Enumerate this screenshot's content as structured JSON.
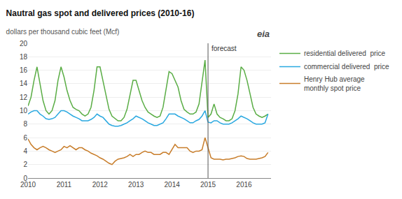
{
  "chart_data": {
    "type": "line",
    "title": "Nautral gas spot and delivered prices (2010-16)",
    "subtitle": "dollars per thousand cubic feet (Mcf)",
    "x": [
      2010.0,
      2010.083,
      2010.167,
      2010.25,
      2010.333,
      2010.417,
      2010.5,
      2010.583,
      2010.667,
      2010.75,
      2010.833,
      2010.917,
      2011.0,
      2011.083,
      2011.167,
      2011.25,
      2011.333,
      2011.417,
      2011.5,
      2011.583,
      2011.667,
      2011.75,
      2011.833,
      2011.917,
      2012.0,
      2012.083,
      2012.167,
      2012.25,
      2012.333,
      2012.417,
      2012.5,
      2012.583,
      2012.667,
      2012.75,
      2012.833,
      2012.917,
      2013.0,
      2013.083,
      2013.167,
      2013.25,
      2013.333,
      2013.417,
      2013.5,
      2013.583,
      2013.667,
      2013.75,
      2013.833,
      2013.917,
      2014.0,
      2014.083,
      2014.167,
      2014.25,
      2014.333,
      2014.417,
      2014.5,
      2014.583,
      2014.667,
      2014.75,
      2014.833,
      2014.917,
      2015.0,
      2015.083,
      2015.167,
      2015.25,
      2015.333,
      2015.417,
      2015.5,
      2015.583,
      2015.667,
      2015.75,
      2015.833,
      2015.917,
      2016.0,
      2016.083,
      2016.167,
      2016.25,
      2016.333,
      2016.417,
      2016.5,
      2016.583,
      2016.667
    ],
    "series": [
      {
        "name": "residential delivered  price",
        "color": "#5aad45",
        "values": [
          10.7,
          12.0,
          14.5,
          16.5,
          14.0,
          11.5,
          10.0,
          9.5,
          10.0,
          11.5,
          14.5,
          16.5,
          15.0,
          13.0,
          11.5,
          10.5,
          10.2,
          10.0,
          9.5,
          9.2,
          9.5,
          10.5,
          13.0,
          16.5,
          16.5,
          14.5,
          12.5,
          10.2,
          9.2,
          8.8,
          8.5,
          8.5,
          9.0,
          10.2,
          12.5,
          14.5,
          14.5,
          13.0,
          11.5,
          10.5,
          9.8,
          9.5,
          9.2,
          9.0,
          9.2,
          10.5,
          13.0,
          15.8,
          15.5,
          14.5,
          13.5,
          11.5,
          10.2,
          9.8,
          9.5,
          9.5,
          9.8,
          11.0,
          14.0,
          17.5,
          9.0,
          9.5,
          11.0,
          9.5,
          9.0,
          8.8,
          8.5,
          8.5,
          8.8,
          10.0,
          12.5,
          16.5,
          16.0,
          14.5,
          12.5,
          10.5,
          9.5,
          9.2,
          9.0,
          9.2,
          9.5
        ]
      },
      {
        "name": "commercial delivered  price",
        "color": "#29a8e0",
        "values": [
          9.5,
          9.8,
          10.0,
          10.0,
          9.5,
          9.2,
          8.8,
          8.7,
          8.8,
          9.0,
          9.5,
          10.0,
          10.0,
          9.8,
          9.5,
          9.2,
          9.0,
          8.8,
          8.5,
          8.5,
          8.5,
          8.7,
          9.0,
          9.5,
          9.2,
          9.0,
          8.5,
          8.0,
          7.8,
          7.7,
          7.7,
          7.8,
          8.0,
          8.2,
          8.5,
          8.8,
          9.2,
          9.0,
          8.8,
          8.5,
          8.2,
          8.0,
          7.8,
          7.8,
          8.0,
          8.2,
          8.8,
          9.5,
          9.5,
          9.5,
          9.2,
          9.0,
          8.8,
          8.5,
          8.2,
          8.2,
          8.5,
          8.7,
          9.2,
          10.0,
          8.3,
          8.2,
          8.5,
          8.5,
          8.2,
          8.0,
          8.0,
          8.0,
          8.2,
          8.5,
          8.8,
          9.2,
          9.0,
          8.8,
          8.5,
          8.2,
          8.0,
          8.0,
          8.0,
          8.2,
          9.5
        ]
      },
      {
        "name": "Henry Hub average\nmonthly spot price",
        "color": "#c87d2a",
        "values": [
          5.8,
          5.0,
          4.5,
          4.2,
          4.5,
          4.7,
          4.5,
          4.2,
          4.0,
          3.8,
          4.0,
          4.2,
          4.7,
          4.5,
          4.8,
          4.5,
          4.2,
          4.5,
          4.5,
          4.2,
          4.0,
          3.7,
          3.5,
          3.3,
          3.0,
          2.8,
          2.5,
          2.2,
          2.0,
          2.5,
          2.8,
          2.9,
          3.0,
          3.2,
          3.5,
          3.2,
          3.5,
          3.5,
          3.8,
          4.0,
          3.8,
          3.8,
          3.5,
          3.5,
          3.5,
          3.8,
          3.8,
          3.5,
          4.2,
          5.0,
          4.5,
          4.5,
          4.5,
          4.5,
          4.0,
          3.8,
          4.0,
          4.0,
          4.2,
          6.0,
          4.5,
          3.0,
          2.8,
          2.8,
          2.8,
          2.7,
          2.8,
          2.8,
          2.9,
          3.0,
          3.2,
          3.3,
          3.2,
          2.9,
          2.8,
          2.8,
          2.8,
          2.9,
          3.0,
          3.2,
          3.8
        ]
      }
    ],
    "annotations": [
      {
        "text": "forecast",
        "x": 2015.0
      },
      {
        "text": "eia"
      }
    ],
    "xlim": [
      2010,
      2016.75
    ],
    "xticks": [
      2010,
      2011,
      2012,
      2013,
      2014,
      2015,
      2016
    ],
    "ylim": [
      0,
      20
    ],
    "yticks": [
      0,
      2,
      4,
      6,
      8,
      10,
      12,
      14,
      16,
      18,
      20
    ],
    "grid": "y",
    "legend": "right"
  }
}
